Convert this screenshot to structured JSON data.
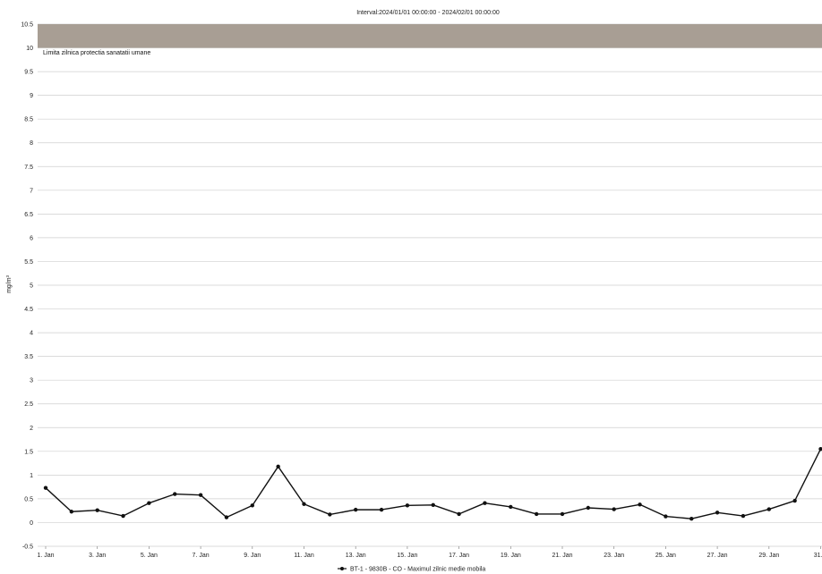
{
  "chart_data": {
    "type": "line",
    "title": "Interval:2024/01/01 00:00:00 - 2024/02/01 00:00:00",
    "xlabel": "",
    "ylabel": "mg/m³",
    "ylim": [
      -0.5,
      10.5
    ],
    "yticks": [
      -0.5,
      0,
      0.5,
      1,
      1.5,
      2,
      2.5,
      3,
      3.5,
      4,
      4.5,
      5,
      5.5,
      6,
      6.5,
      7,
      7.5,
      8,
      8.5,
      9,
      9.5,
      10,
      10.5
    ],
    "x": [
      "1. Jan",
      "2. Jan",
      "3. Jan",
      "4. Jan",
      "5. Jan",
      "6. Jan",
      "7. Jan",
      "8. Jan",
      "9. Jan",
      "10. Jan",
      "11. Jan",
      "12. Jan",
      "13. Jan",
      "14. Jan",
      "15. Jan",
      "16. Jan",
      "17. Jan",
      "18. Jan",
      "19. Jan",
      "20. Jan",
      "21. Jan",
      "22. Jan",
      "23. Jan",
      "24. Jan",
      "25. Jan",
      "26. Jan",
      "27. Jan",
      "28. Jan",
      "29. Jan",
      "30. Jan",
      "31. Jan"
    ],
    "xtick_labels": [
      "1. Jan",
      "3. Jan",
      "5. Jan",
      "7. Jan",
      "9. Jan",
      "11. Jan",
      "13. Jan",
      "15. Jan",
      "17. Jan",
      "19. Jan",
      "21. Jan",
      "23. Jan",
      "25. Jan",
      "27. Jan",
      "29. Jan",
      "31. .."
    ],
    "xtick_every": 2,
    "grid": true,
    "legend_position": "bottom",
    "series": [
      {
        "name": "BT-1 - 9830B - CO - Maximul zilnic medie mobila",
        "color": "#111111",
        "values": [
          0.73,
          0.23,
          0.26,
          0.14,
          0.41,
          0.6,
          0.58,
          0.11,
          0.36,
          1.18,
          0.39,
          0.17,
          0.27,
          0.27,
          0.36,
          0.37,
          0.18,
          0.41,
          0.33,
          0.18,
          0.18,
          0.31,
          0.28,
          0.38,
          0.13,
          0.08,
          0.21,
          0.14,
          0.28,
          0.46,
          1.55
        ]
      }
    ],
    "threshold_band": {
      "label": "Limita zilnica protectia sanatatii umane",
      "from": 10,
      "to": 10.5,
      "color": "#a89e94"
    }
  }
}
